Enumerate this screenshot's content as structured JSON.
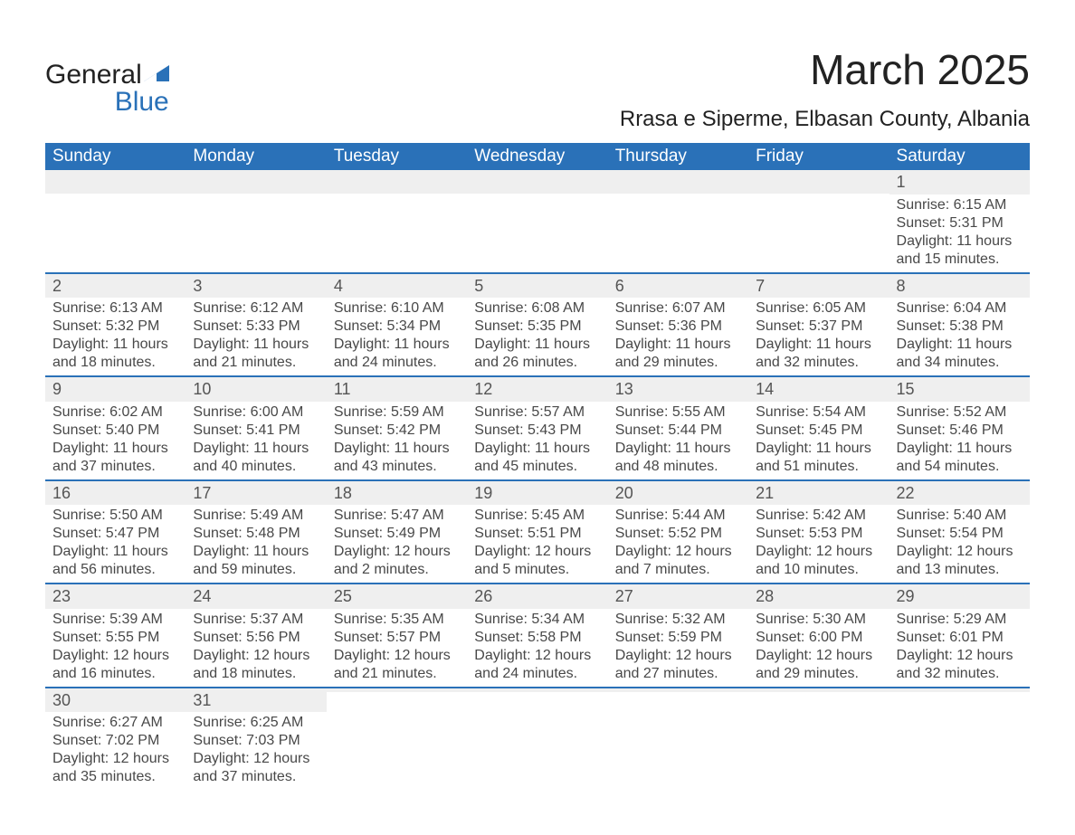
{
  "logo": {
    "general": "General",
    "blue": "Blue",
    "tri_color": "#2a71b8"
  },
  "title": "March 2025",
  "location": "Rrasa e Siperme, Elbasan County, Albania",
  "colors": {
    "header_bg": "#2a71b8",
    "header_text": "#ffffff",
    "daynum_bg": "#efefef",
    "row_border": "#2a71b8",
    "body_text": "#484848",
    "page_bg": "#ffffff"
  },
  "weekdays": [
    "Sunday",
    "Monday",
    "Tuesday",
    "Wednesday",
    "Thursday",
    "Friday",
    "Saturday"
  ],
  "weeks": [
    [
      {
        "day": "",
        "lines": []
      },
      {
        "day": "",
        "lines": []
      },
      {
        "day": "",
        "lines": []
      },
      {
        "day": "",
        "lines": []
      },
      {
        "day": "",
        "lines": []
      },
      {
        "day": "",
        "lines": []
      },
      {
        "day": "1",
        "lines": [
          "Sunrise: 6:15 AM",
          "Sunset: 5:31 PM",
          "Daylight: 11 hours and 15 minutes."
        ]
      }
    ],
    [
      {
        "day": "2",
        "lines": [
          "Sunrise: 6:13 AM",
          "Sunset: 5:32 PM",
          "Daylight: 11 hours and 18 minutes."
        ]
      },
      {
        "day": "3",
        "lines": [
          "Sunrise: 6:12 AM",
          "Sunset: 5:33 PM",
          "Daylight: 11 hours and 21 minutes."
        ]
      },
      {
        "day": "4",
        "lines": [
          "Sunrise: 6:10 AM",
          "Sunset: 5:34 PM",
          "Daylight: 11 hours and 24 minutes."
        ]
      },
      {
        "day": "5",
        "lines": [
          "Sunrise: 6:08 AM",
          "Sunset: 5:35 PM",
          "Daylight: 11 hours and 26 minutes."
        ]
      },
      {
        "day": "6",
        "lines": [
          "Sunrise: 6:07 AM",
          "Sunset: 5:36 PM",
          "Daylight: 11 hours and 29 minutes."
        ]
      },
      {
        "day": "7",
        "lines": [
          "Sunrise: 6:05 AM",
          "Sunset: 5:37 PM",
          "Daylight: 11 hours and 32 minutes."
        ]
      },
      {
        "day": "8",
        "lines": [
          "Sunrise: 6:04 AM",
          "Sunset: 5:38 PM",
          "Daylight: 11 hours and 34 minutes."
        ]
      }
    ],
    [
      {
        "day": "9",
        "lines": [
          "Sunrise: 6:02 AM",
          "Sunset: 5:40 PM",
          "Daylight: 11 hours and 37 minutes."
        ]
      },
      {
        "day": "10",
        "lines": [
          "Sunrise: 6:00 AM",
          "Sunset: 5:41 PM",
          "Daylight: 11 hours and 40 minutes."
        ]
      },
      {
        "day": "11",
        "lines": [
          "Sunrise: 5:59 AM",
          "Sunset: 5:42 PM",
          "Daylight: 11 hours and 43 minutes."
        ]
      },
      {
        "day": "12",
        "lines": [
          "Sunrise: 5:57 AM",
          "Sunset: 5:43 PM",
          "Daylight: 11 hours and 45 minutes."
        ]
      },
      {
        "day": "13",
        "lines": [
          "Sunrise: 5:55 AM",
          "Sunset: 5:44 PM",
          "Daylight: 11 hours and 48 minutes."
        ]
      },
      {
        "day": "14",
        "lines": [
          "Sunrise: 5:54 AM",
          "Sunset: 5:45 PM",
          "Daylight: 11 hours and 51 minutes."
        ]
      },
      {
        "day": "15",
        "lines": [
          "Sunrise: 5:52 AM",
          "Sunset: 5:46 PM",
          "Daylight: 11 hours and 54 minutes."
        ]
      }
    ],
    [
      {
        "day": "16",
        "lines": [
          "Sunrise: 5:50 AM",
          "Sunset: 5:47 PM",
          "Daylight: 11 hours and 56 minutes."
        ]
      },
      {
        "day": "17",
        "lines": [
          "Sunrise: 5:49 AM",
          "Sunset: 5:48 PM",
          "Daylight: 11 hours and 59 minutes."
        ]
      },
      {
        "day": "18",
        "lines": [
          "Sunrise: 5:47 AM",
          "Sunset: 5:49 PM",
          "Daylight: 12 hours and 2 minutes."
        ]
      },
      {
        "day": "19",
        "lines": [
          "Sunrise: 5:45 AM",
          "Sunset: 5:51 PM",
          "Daylight: 12 hours and 5 minutes."
        ]
      },
      {
        "day": "20",
        "lines": [
          "Sunrise: 5:44 AM",
          "Sunset: 5:52 PM",
          "Daylight: 12 hours and 7 minutes."
        ]
      },
      {
        "day": "21",
        "lines": [
          "Sunrise: 5:42 AM",
          "Sunset: 5:53 PM",
          "Daylight: 12 hours and 10 minutes."
        ]
      },
      {
        "day": "22",
        "lines": [
          "Sunrise: 5:40 AM",
          "Sunset: 5:54 PM",
          "Daylight: 12 hours and 13 minutes."
        ]
      }
    ],
    [
      {
        "day": "23",
        "lines": [
          "Sunrise: 5:39 AM",
          "Sunset: 5:55 PM",
          "Daylight: 12 hours and 16 minutes."
        ]
      },
      {
        "day": "24",
        "lines": [
          "Sunrise: 5:37 AM",
          "Sunset: 5:56 PM",
          "Daylight: 12 hours and 18 minutes."
        ]
      },
      {
        "day": "25",
        "lines": [
          "Sunrise: 5:35 AM",
          "Sunset: 5:57 PM",
          "Daylight: 12 hours and 21 minutes."
        ]
      },
      {
        "day": "26",
        "lines": [
          "Sunrise: 5:34 AM",
          "Sunset: 5:58 PM",
          "Daylight: 12 hours and 24 minutes."
        ]
      },
      {
        "day": "27",
        "lines": [
          "Sunrise: 5:32 AM",
          "Sunset: 5:59 PM",
          "Daylight: 12 hours and 27 minutes."
        ]
      },
      {
        "day": "28",
        "lines": [
          "Sunrise: 5:30 AM",
          "Sunset: 6:00 PM",
          "Daylight: 12 hours and 29 minutes."
        ]
      },
      {
        "day": "29",
        "lines": [
          "Sunrise: 5:29 AM",
          "Sunset: 6:01 PM",
          "Daylight: 12 hours and 32 minutes."
        ]
      }
    ],
    [
      {
        "day": "30",
        "lines": [
          "Sunrise: 6:27 AM",
          "Sunset: 7:02 PM",
          "Daylight: 12 hours and 35 minutes."
        ]
      },
      {
        "day": "31",
        "lines": [
          "Sunrise: 6:25 AM",
          "Sunset: 7:03 PM",
          "Daylight: 12 hours and 37 minutes."
        ]
      },
      {
        "day": "",
        "lines": []
      },
      {
        "day": "",
        "lines": []
      },
      {
        "day": "",
        "lines": []
      },
      {
        "day": "",
        "lines": []
      },
      {
        "day": "",
        "lines": []
      }
    ]
  ]
}
